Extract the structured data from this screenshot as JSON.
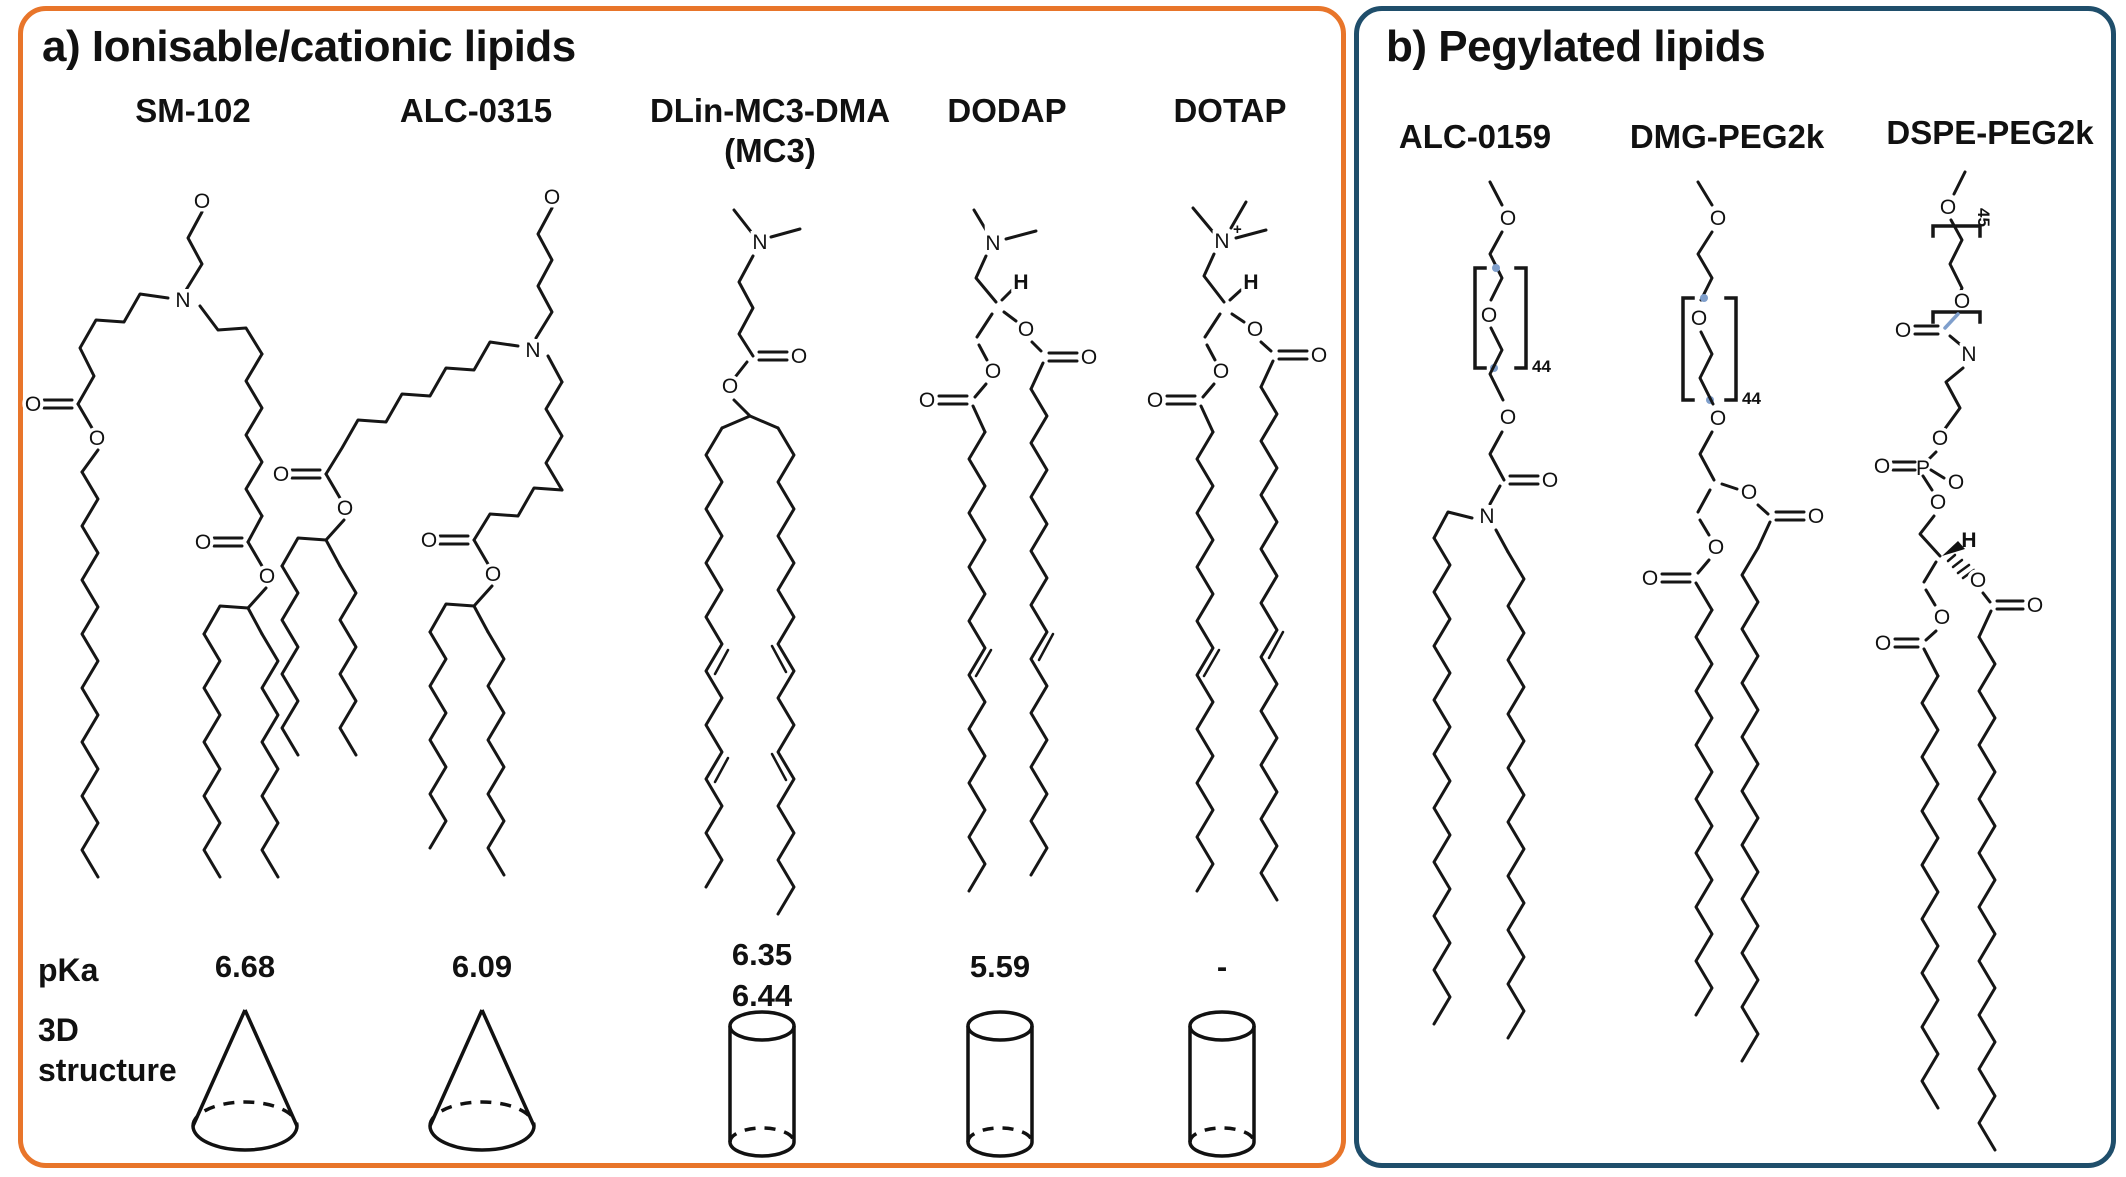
{
  "colors": {
    "orange": "#E8752A",
    "navy": "#1F4E6B",
    "blue": "#7F9FCC",
    "ink": "#161616"
  },
  "panel_a": {
    "title": "a) Ionisable/cationic lipids",
    "pka_label": "pKa",
    "structure_label_1": "3D",
    "structure_label_2": "structure",
    "lipids": [
      {
        "name": "SM-102",
        "pka": [
          "6.68"
        ],
        "shape": "cone",
        "atoms": [
          "O",
          "N",
          "O",
          "O",
          "O",
          "O"
        ]
      },
      {
        "name": "ALC-0315",
        "pka": [
          "6.09"
        ],
        "shape": "cone",
        "atoms": [
          "O",
          "N",
          "O",
          "O",
          "O",
          "O"
        ]
      },
      {
        "name": "DLin-MC3-DMA",
        "name2": "(MC3)",
        "pka": [
          "6.35",
          "6.44"
        ],
        "shape": "cylinder",
        "atoms": [
          "N",
          "O",
          "O"
        ]
      },
      {
        "name": "DODAP",
        "pka": [
          "5.59"
        ],
        "shape": "cylinder",
        "atoms": [
          "N",
          "H",
          "O",
          "O",
          "O",
          "O"
        ]
      },
      {
        "name": "DOTAP",
        "pka": [
          "-"
        ],
        "shape": "cylinder",
        "atoms": [
          "N",
          "H",
          "O",
          "O",
          "O",
          "O"
        ],
        "charge": "+"
      }
    ]
  },
  "panel_b": {
    "title": "b) Pegylated lipids",
    "lipids": [
      {
        "name": "ALC-0159",
        "peg_n": "44",
        "atoms": [
          "O",
          "O",
          "O",
          "O",
          "N"
        ]
      },
      {
        "name": "DMG-PEG2k",
        "peg_n": "44",
        "atoms": [
          "O",
          "O",
          "O",
          "O",
          "O",
          "O",
          "O"
        ]
      },
      {
        "name": "DSPE-PEG2k",
        "peg_n": "45",
        "atoms": [
          "O",
          "O",
          "O",
          "N",
          "O",
          "P",
          "O",
          "O",
          "O",
          "H",
          "O",
          "O",
          "O",
          "O"
        ]
      }
    ]
  }
}
